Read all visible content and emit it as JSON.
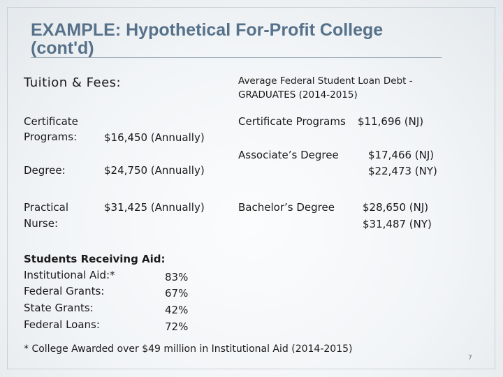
{
  "slide": {
    "title_line1": "EXAMPLE: Hypothetical For-Profit College",
    "title_line2": "(cont'd)",
    "tuition_heading": "Tuition & Fees:",
    "fees": [
      {
        "label_1": "Certificate",
        "label_2": "Programs:",
        "value": "$16,450 (Annually)"
      },
      {
        "label_1": "Degree:",
        "value": "$24,750 (Annually)"
      },
      {
        "label_1": "Practical",
        "label_2": "Nurse:",
        "value": "$31,425 (Annually)"
      }
    ],
    "debt_heading_1": "Average Federal Student Loan Debt -",
    "debt_heading_2": "GRADUATES (2014-2015)",
    "debt": [
      {
        "label": "Certificate Programs",
        "value_1": "$11,696 (NJ)"
      },
      {
        "label": "Associate’s Degree",
        "value_1": "$17,466 (NJ)",
        "value_2": "$22,473 (NY)"
      },
      {
        "label": "Bachelor’s Degree",
        "value_1": "$28,650 (NJ)",
        "value_2": "$31,487 (NY)"
      }
    ],
    "aid_heading": "Students Receiving Aid:",
    "aid": [
      {
        "label": "Institutional Aid:*",
        "value": "83%"
      },
      {
        "label": "Federal Grants:",
        "value": "67%"
      },
      {
        "label": "State Grants:",
        "value": "42%"
      },
      {
        "label": "Federal Loans:",
        "value": "72%"
      }
    ],
    "footnote": "* College Awarded over $49 million in Institutional Aid (2014-2015)",
    "page_number": "7"
  }
}
